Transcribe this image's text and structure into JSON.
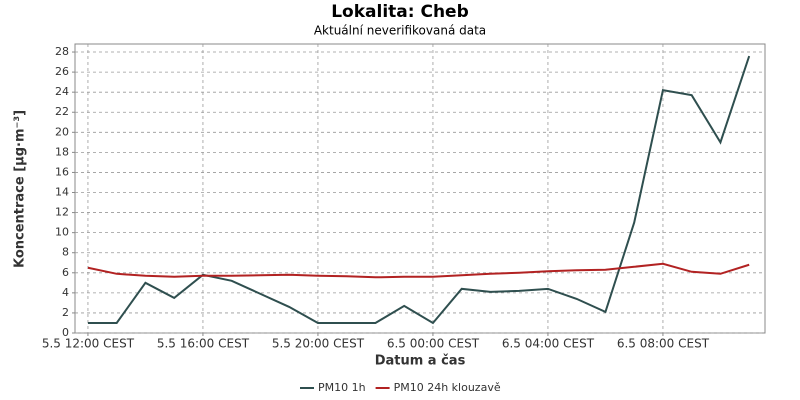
{
  "chart_data": {
    "type": "line",
    "title": "Lokalita: Cheb",
    "subtitle": "Aktuální neverifikovaná data",
    "y_label": "Koncentrace [µg·m⁻³]",
    "x_label": "Datum a čas",
    "x": [
      0,
      1,
      2,
      3,
      4,
      5,
      6,
      7,
      8,
      9,
      10,
      11,
      12,
      13,
      14,
      15,
      16,
      17,
      18,
      19,
      20,
      21,
      22,
      23
    ],
    "series": [
      {
        "name": "PM10 1h",
        "color": "#2f4f4f",
        "values": [
          1.0,
          1.0,
          5.0,
          3.5,
          5.8,
          5.2,
          3.9,
          2.6,
          1.0,
          1.0,
          1.0,
          2.7,
          1.0,
          4.4,
          4.1,
          4.2,
          4.4,
          3.4,
          2.1,
          11.0,
          24.2,
          23.7,
          19.0,
          27.6
        ]
      },
      {
        "name": "PM10 24h klouzavě",
        "color": "#b22222",
        "values": [
          6.5,
          5.9,
          5.7,
          5.6,
          5.7,
          5.7,
          5.75,
          5.8,
          5.7,
          5.65,
          5.55,
          5.6,
          5.6,
          5.75,
          5.9,
          6.0,
          6.15,
          6.25,
          6.3,
          6.6,
          6.9,
          6.1,
          5.9,
          6.8
        ]
      }
    ],
    "xlim": [
      -0.45,
      23.55
    ],
    "xticks": [
      {
        "value": 0,
        "label": "5.5 12:00 CEST"
      },
      {
        "value": 4,
        "label": "5.5 16:00 CEST"
      },
      {
        "value": 8,
        "label": "5.5 20:00 CEST"
      },
      {
        "value": 12,
        "label": "6.5 00:00 CEST"
      },
      {
        "value": 16,
        "label": "6.5 04:00 CEST"
      },
      {
        "value": 20,
        "label": "6.5 08:00 CEST"
      }
    ],
    "ylim": [
      0,
      28.8
    ],
    "yticks": [
      0,
      2,
      4,
      6,
      8,
      10,
      12,
      14,
      16,
      18,
      20,
      22,
      24,
      26,
      28
    ],
    "grid": true,
    "legend": "bottom"
  }
}
